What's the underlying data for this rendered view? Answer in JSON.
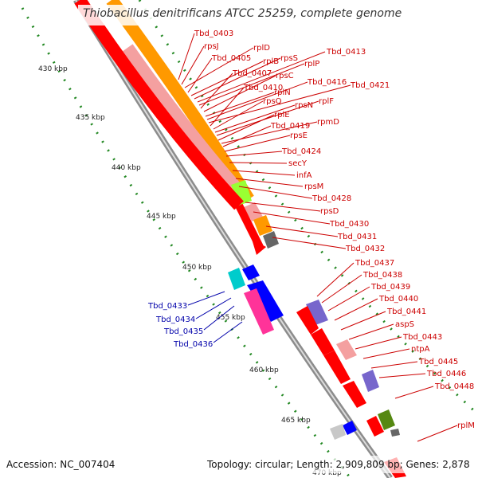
{
  "title": "Thiobacillus denitrificans ATCC 25259, complete genome",
  "footer": {
    "accession": "Accession: NC_007404",
    "topology": "Topology: circular; Length: 2,909,809 bp; Genes: 2,878"
  },
  "colors": {
    "gene_red": "#ff0000",
    "label_red": "#cc0000",
    "label_blue": "#0000aa",
    "tick_green": "#228822",
    "orange": "#ff9900",
    "light_red": "#f4a0a0",
    "lime": "#99ff33",
    "cyan": "#00cccc",
    "magenta": "#ff3399",
    "blue": "#0000ff",
    "gray": "#888888",
    "purple": "#7766cc",
    "olive": "#558811"
  },
  "scale_labels": [
    "430 kbp",
    "435 kbp",
    "440 kbp",
    "445 kbp",
    "450 kbp",
    "455 kbp",
    "460 kbp",
    "465 kbp",
    "470 kbp"
  ],
  "red_labels": [
    "Tbd_0403",
    "rpsJ",
    "rplD",
    "Tbd_0405",
    "rplB",
    "rpsS",
    "Tbd_0413",
    "rplP",
    "Tbd_0407",
    "rpsC",
    "rplN",
    "Tbd_0416",
    "Tbd_0421",
    "Tbd_0410",
    "rpsQ",
    "rpsN",
    "rplF",
    "rplE",
    "rpmD",
    "Tbd_0419",
    "rpsE",
    "Tbd_0424",
    "secY",
    "infA",
    "rpsM",
    "Tbd_0428",
    "rpsD",
    "Tbd_0430",
    "Tbd_0431",
    "Tbd_0432",
    "Tbd_0437",
    "Tbd_0438",
    "Tbd_0439",
    "Tbd_0440",
    "Tbd_0441",
    "aspS",
    "Tbd_0443",
    "ntpA",
    "Tbd_0445",
    "Tbd_0446",
    "Tbd_0448",
    "rplM"
  ],
  "blue_labels": [
    "Tbd_0433",
    "Tbd_0434",
    "Tbd_0435",
    "Tbd_0436"
  ]
}
